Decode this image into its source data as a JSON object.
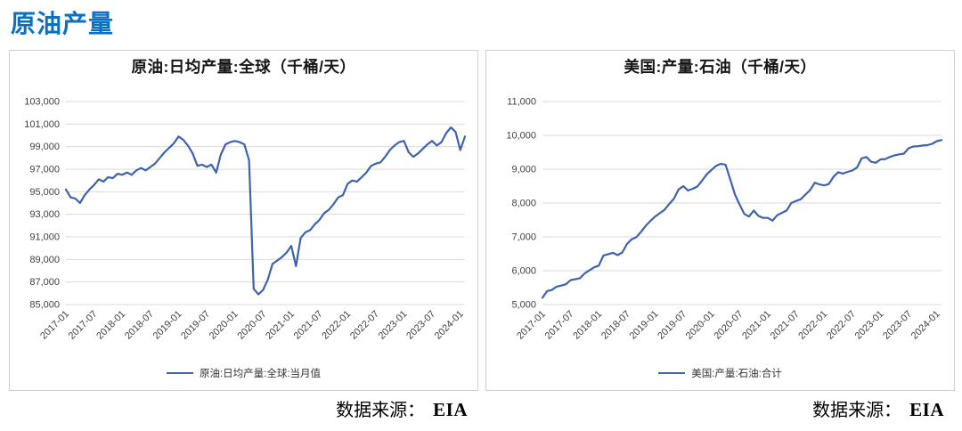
{
  "page": {
    "title": "原油产量"
  },
  "colors": {
    "accent": "#0b70c0",
    "line": "#3e63ac",
    "grid": "#d9d9d9",
    "card_border": "#cfcfcf",
    "axis_text": "#3f3f3f"
  },
  "sources": [
    {
      "label": "数据来源：",
      "value": "EIA"
    },
    {
      "label": "数据来源：",
      "value": "EIA"
    }
  ],
  "chart_data": [
    {
      "type": "line",
      "title": "原油:日均产量:全球（千桶/天）",
      "legend_position": "bottom",
      "grid": true,
      "ylim": [
        85000,
        103000
      ],
      "ystep": 2000,
      "xtick_every": 6,
      "x_ticks": [
        "2017-01",
        "2017-07",
        "2018-01",
        "2018-07",
        "2019-01",
        "2019-07",
        "2020-01",
        "2020-07",
        "2021-01",
        "2021-07",
        "2022-01",
        "2022-07",
        "2023-01",
        "2023-07",
        "2024-01"
      ],
      "series": [
        {
          "name": "原油:日均产量:全球:当月值",
          "values": [
            95200,
            94500,
            94400,
            94000,
            94700,
            95200,
            95600,
            96100,
            95900,
            96300,
            96200,
            96600,
            96500,
            96700,
            96500,
            96900,
            97100,
            96900,
            97200,
            97500,
            98000,
            98500,
            98900,
            99300,
            99900,
            99600,
            99100,
            98400,
            97300,
            97400,
            97200,
            97400,
            96700,
            98300,
            99200,
            99400,
            99500,
            99400,
            99200,
            97800,
            86400,
            85900,
            86300,
            87200,
            88600,
            88900,
            89200,
            89600,
            90200,
            88400,
            90900,
            91400,
            91600,
            92100,
            92500,
            93100,
            93400,
            93900,
            94500,
            94700,
            95700,
            96000,
            95900,
            96300,
            96700,
            97300,
            97500,
            97600,
            98100,
            98700,
            99100,
            99400,
            99500,
            98500,
            98100,
            98400,
            98800,
            99200,
            99500,
            99100,
            99400,
            100200,
            100700,
            100300,
            98700,
            99900
          ]
        }
      ]
    },
    {
      "type": "line",
      "title": "美国:产量:石油（千桶/天）",
      "legend_position": "bottom",
      "grid": true,
      "ylim": [
        5000,
        11000
      ],
      "ystep": 1000,
      "xtick_every": 6,
      "x_ticks": [
        "2017-01",
        "2017-07",
        "2018-01",
        "2018-07",
        "2019-01",
        "2019-07",
        "2020-01",
        "2020-07",
        "2021-01",
        "2021-07",
        "2022-01",
        "2022-07",
        "2023-01",
        "2023-07",
        "2024-01"
      ],
      "series": [
        {
          "name": "美国:产量:石油:合计",
          "values": [
            5200,
            5400,
            5430,
            5530,
            5560,
            5600,
            5720,
            5750,
            5780,
            5920,
            6010,
            6100,
            6150,
            6450,
            6490,
            6530,
            6460,
            6540,
            6790,
            6930,
            6990,
            7150,
            7330,
            7470,
            7600,
            7700,
            7800,
            7970,
            8130,
            8400,
            8500,
            8370,
            8420,
            8490,
            8660,
            8850,
            8980,
            9100,
            9160,
            9130,
            8700,
            8250,
            7950,
            7680,
            7600,
            7780,
            7620,
            7560,
            7560,
            7480,
            7640,
            7710,
            7780,
            8000,
            8060,
            8110,
            8250,
            8380,
            8600,
            8550,
            8520,
            8560,
            8780,
            8910,
            8870,
            8920,
            8960,
            9050,
            9320,
            9360,
            9220,
            9190,
            9290,
            9300,
            9360,
            9410,
            9440,
            9460,
            9620,
            9670,
            9680,
            9700,
            9710,
            9750,
            9830,
            9860
          ]
        }
      ]
    }
  ]
}
